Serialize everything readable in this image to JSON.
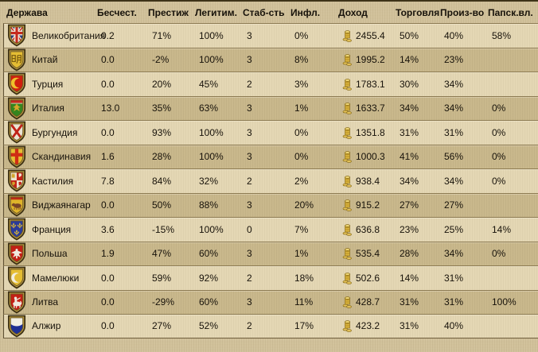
{
  "table": {
    "columns": [
      {
        "key": "country",
        "label": "Держава"
      },
      {
        "key": "infamy",
        "label": "Бесчест."
      },
      {
        "key": "prestige",
        "label": "Престиж"
      },
      {
        "key": "legitimacy",
        "label": "Легитим."
      },
      {
        "key": "stability",
        "label": "Стаб-сть"
      },
      {
        "key": "inflation",
        "label": "Инфл."
      },
      {
        "key": "income",
        "label": "Доход"
      },
      {
        "key": "trade",
        "label": "Торговля"
      },
      {
        "key": "production",
        "label": "Произ-во"
      },
      {
        "key": "papal",
        "label": "Папск.вл."
      }
    ],
    "rows": [
      {
        "country": "Великобритания",
        "shield": "uk",
        "infamy": "0.2",
        "prestige": "71%",
        "legitimacy": "100%",
        "stability": "3",
        "inflation": "0%",
        "income": "2455.4",
        "trade": "50%",
        "production": "40%",
        "papal": "58%"
      },
      {
        "country": "Китай",
        "shield": "ming",
        "infamy": "0.0",
        "prestige": "-2%",
        "legitimacy": "100%",
        "stability": "3",
        "inflation": "8%",
        "income": "1995.2",
        "trade": "14%",
        "production": "23%",
        "papal": ""
      },
      {
        "country": "Турция",
        "shield": "ottoman",
        "infamy": "0.0",
        "prestige": "20%",
        "legitimacy": "45%",
        "stability": "2",
        "inflation": "3%",
        "income": "1783.1",
        "trade": "30%",
        "production": "34%",
        "papal": ""
      },
      {
        "country": "Италия",
        "shield": "italy",
        "infamy": "13.0",
        "prestige": "35%",
        "legitimacy": "63%",
        "stability": "3",
        "inflation": "1%",
        "income": "1633.7",
        "trade": "34%",
        "production": "34%",
        "papal": "0%"
      },
      {
        "country": "Бургундия",
        "shield": "burgundy",
        "infamy": "0.0",
        "prestige": "93%",
        "legitimacy": "100%",
        "stability": "3",
        "inflation": "0%",
        "income": "1351.8",
        "trade": "31%",
        "production": "31%",
        "papal": "0%"
      },
      {
        "country": "Скандинавия",
        "shield": "scandinavia",
        "infamy": "1.6",
        "prestige": "28%",
        "legitimacy": "100%",
        "stability": "3",
        "inflation": "0%",
        "income": "1000.3",
        "trade": "41%",
        "production": "56%",
        "papal": "0%"
      },
      {
        "country": "Кастилия",
        "shield": "castile",
        "infamy": "7.8",
        "prestige": "84%",
        "legitimacy": "32%",
        "stability": "2",
        "inflation": "2%",
        "income": "938.4",
        "trade": "34%",
        "production": "34%",
        "papal": "0%"
      },
      {
        "country": "Виджаянагар",
        "shield": "vijayanagar",
        "infamy": "0.0",
        "prestige": "50%",
        "legitimacy": "88%",
        "stability": "3",
        "inflation": "20%",
        "income": "915.2",
        "trade": "27%",
        "production": "27%",
        "papal": ""
      },
      {
        "country": "Франция",
        "shield": "france",
        "infamy": "3.6",
        "prestige": "-15%",
        "legitimacy": "100%",
        "stability": "0",
        "inflation": "7%",
        "income": "636.8",
        "trade": "23%",
        "production": "25%",
        "papal": "14%"
      },
      {
        "country": "Польша",
        "shield": "poland",
        "infamy": "1.9",
        "prestige": "47%",
        "legitimacy": "60%",
        "stability": "3",
        "inflation": "1%",
        "income": "535.4",
        "trade": "28%",
        "production": "34%",
        "papal": "0%"
      },
      {
        "country": "Мамелюки",
        "shield": "mamluks",
        "infamy": "0.0",
        "prestige": "59%",
        "legitimacy": "92%",
        "stability": "2",
        "inflation": "18%",
        "income": "502.6",
        "trade": "14%",
        "production": "31%",
        "papal": ""
      },
      {
        "country": "Литва",
        "shield": "lithuania",
        "infamy": "0.0",
        "prestige": "-29%",
        "legitimacy": "60%",
        "stability": "3",
        "inflation": "11%",
        "income": "428.7",
        "trade": "31%",
        "production": "31%",
        "papal": "100%"
      },
      {
        "country": "Алжир",
        "shield": "algiers",
        "infamy": "0.0",
        "prestige": "27%",
        "legitimacy": "52%",
        "stability": "2",
        "inflation": "17%",
        "income": "423.2",
        "trade": "31%",
        "production": "40%",
        "papal": ""
      }
    ]
  },
  "icons": {
    "income_icon": "gold-coins-icon",
    "row_icon": "coat-of-arms-shield-icon"
  },
  "colors": {
    "background": "#d0c099",
    "row_light": "#e4d7b4",
    "row_dark": "#c9b88c",
    "separator": "#8d7b52",
    "text": "#17120a",
    "coin_gold": "#d9b33c"
  }
}
